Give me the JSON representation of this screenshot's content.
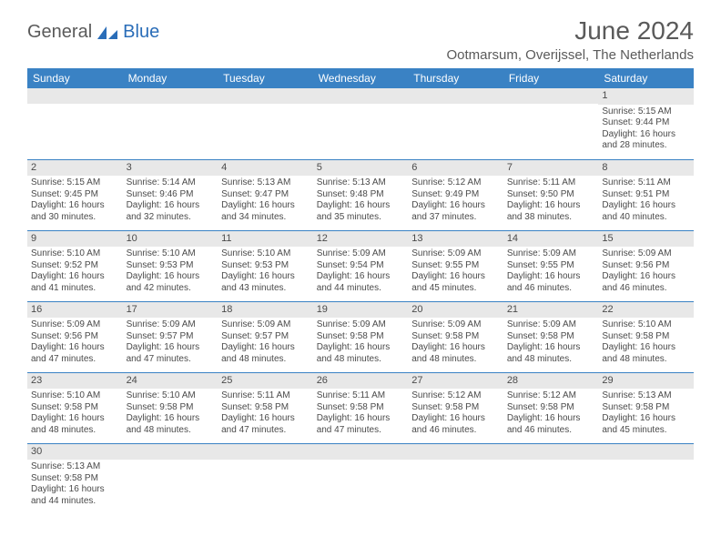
{
  "logo": {
    "text1": "General",
    "text2": "Blue"
  },
  "header": {
    "month_title": "June 2024",
    "location": "Ootmarsum, Overijssel, The Netherlands"
  },
  "colors": {
    "header_bg": "#3a82c4",
    "header_text": "#ffffff",
    "daynum_bg": "#e8e8e8",
    "border": "#3a82c4",
    "text": "#4a4a4a",
    "logo_gray": "#5a5a5a",
    "logo_blue": "#2a6db8"
  },
  "weekdays": [
    "Sunday",
    "Monday",
    "Tuesday",
    "Wednesday",
    "Thursday",
    "Friday",
    "Saturday"
  ],
  "weeks": [
    [
      {
        "empty": true
      },
      {
        "empty": true
      },
      {
        "empty": true
      },
      {
        "empty": true
      },
      {
        "empty": true
      },
      {
        "empty": true
      },
      {
        "day": "1",
        "sunrise": "Sunrise: 5:15 AM",
        "sunset": "Sunset: 9:44 PM",
        "daylight": "Daylight: 16 hours and 28 minutes."
      }
    ],
    [
      {
        "day": "2",
        "sunrise": "Sunrise: 5:15 AM",
        "sunset": "Sunset: 9:45 PM",
        "daylight": "Daylight: 16 hours and 30 minutes."
      },
      {
        "day": "3",
        "sunrise": "Sunrise: 5:14 AM",
        "sunset": "Sunset: 9:46 PM",
        "daylight": "Daylight: 16 hours and 32 minutes."
      },
      {
        "day": "4",
        "sunrise": "Sunrise: 5:13 AM",
        "sunset": "Sunset: 9:47 PM",
        "daylight": "Daylight: 16 hours and 34 minutes."
      },
      {
        "day": "5",
        "sunrise": "Sunrise: 5:13 AM",
        "sunset": "Sunset: 9:48 PM",
        "daylight": "Daylight: 16 hours and 35 minutes."
      },
      {
        "day": "6",
        "sunrise": "Sunrise: 5:12 AM",
        "sunset": "Sunset: 9:49 PM",
        "daylight": "Daylight: 16 hours and 37 minutes."
      },
      {
        "day": "7",
        "sunrise": "Sunrise: 5:11 AM",
        "sunset": "Sunset: 9:50 PM",
        "daylight": "Daylight: 16 hours and 38 minutes."
      },
      {
        "day": "8",
        "sunrise": "Sunrise: 5:11 AM",
        "sunset": "Sunset: 9:51 PM",
        "daylight": "Daylight: 16 hours and 40 minutes."
      }
    ],
    [
      {
        "day": "9",
        "sunrise": "Sunrise: 5:10 AM",
        "sunset": "Sunset: 9:52 PM",
        "daylight": "Daylight: 16 hours and 41 minutes."
      },
      {
        "day": "10",
        "sunrise": "Sunrise: 5:10 AM",
        "sunset": "Sunset: 9:53 PM",
        "daylight": "Daylight: 16 hours and 42 minutes."
      },
      {
        "day": "11",
        "sunrise": "Sunrise: 5:10 AM",
        "sunset": "Sunset: 9:53 PM",
        "daylight": "Daylight: 16 hours and 43 minutes."
      },
      {
        "day": "12",
        "sunrise": "Sunrise: 5:09 AM",
        "sunset": "Sunset: 9:54 PM",
        "daylight": "Daylight: 16 hours and 44 minutes."
      },
      {
        "day": "13",
        "sunrise": "Sunrise: 5:09 AM",
        "sunset": "Sunset: 9:55 PM",
        "daylight": "Daylight: 16 hours and 45 minutes."
      },
      {
        "day": "14",
        "sunrise": "Sunrise: 5:09 AM",
        "sunset": "Sunset: 9:55 PM",
        "daylight": "Daylight: 16 hours and 46 minutes."
      },
      {
        "day": "15",
        "sunrise": "Sunrise: 5:09 AM",
        "sunset": "Sunset: 9:56 PM",
        "daylight": "Daylight: 16 hours and 46 minutes."
      }
    ],
    [
      {
        "day": "16",
        "sunrise": "Sunrise: 5:09 AM",
        "sunset": "Sunset: 9:56 PM",
        "daylight": "Daylight: 16 hours and 47 minutes."
      },
      {
        "day": "17",
        "sunrise": "Sunrise: 5:09 AM",
        "sunset": "Sunset: 9:57 PM",
        "daylight": "Daylight: 16 hours and 47 minutes."
      },
      {
        "day": "18",
        "sunrise": "Sunrise: 5:09 AM",
        "sunset": "Sunset: 9:57 PM",
        "daylight": "Daylight: 16 hours and 48 minutes."
      },
      {
        "day": "19",
        "sunrise": "Sunrise: 5:09 AM",
        "sunset": "Sunset: 9:58 PM",
        "daylight": "Daylight: 16 hours and 48 minutes."
      },
      {
        "day": "20",
        "sunrise": "Sunrise: 5:09 AM",
        "sunset": "Sunset: 9:58 PM",
        "daylight": "Daylight: 16 hours and 48 minutes."
      },
      {
        "day": "21",
        "sunrise": "Sunrise: 5:09 AM",
        "sunset": "Sunset: 9:58 PM",
        "daylight": "Daylight: 16 hours and 48 minutes."
      },
      {
        "day": "22",
        "sunrise": "Sunrise: 5:10 AM",
        "sunset": "Sunset: 9:58 PM",
        "daylight": "Daylight: 16 hours and 48 minutes."
      }
    ],
    [
      {
        "day": "23",
        "sunrise": "Sunrise: 5:10 AM",
        "sunset": "Sunset: 9:58 PM",
        "daylight": "Daylight: 16 hours and 48 minutes."
      },
      {
        "day": "24",
        "sunrise": "Sunrise: 5:10 AM",
        "sunset": "Sunset: 9:58 PM",
        "daylight": "Daylight: 16 hours and 48 minutes."
      },
      {
        "day": "25",
        "sunrise": "Sunrise: 5:11 AM",
        "sunset": "Sunset: 9:58 PM",
        "daylight": "Daylight: 16 hours and 47 minutes."
      },
      {
        "day": "26",
        "sunrise": "Sunrise: 5:11 AM",
        "sunset": "Sunset: 9:58 PM",
        "daylight": "Daylight: 16 hours and 47 minutes."
      },
      {
        "day": "27",
        "sunrise": "Sunrise: 5:12 AM",
        "sunset": "Sunset: 9:58 PM",
        "daylight": "Daylight: 16 hours and 46 minutes."
      },
      {
        "day": "28",
        "sunrise": "Sunrise: 5:12 AM",
        "sunset": "Sunset: 9:58 PM",
        "daylight": "Daylight: 16 hours and 46 minutes."
      },
      {
        "day": "29",
        "sunrise": "Sunrise: 5:13 AM",
        "sunset": "Sunset: 9:58 PM",
        "daylight": "Daylight: 16 hours and 45 minutes."
      }
    ],
    [
      {
        "day": "30",
        "sunrise": "Sunrise: 5:13 AM",
        "sunset": "Sunset: 9:58 PM",
        "daylight": "Daylight: 16 hours and 44 minutes."
      },
      {
        "empty": true
      },
      {
        "empty": true
      },
      {
        "empty": true
      },
      {
        "empty": true
      },
      {
        "empty": true
      },
      {
        "empty": true
      }
    ]
  ]
}
